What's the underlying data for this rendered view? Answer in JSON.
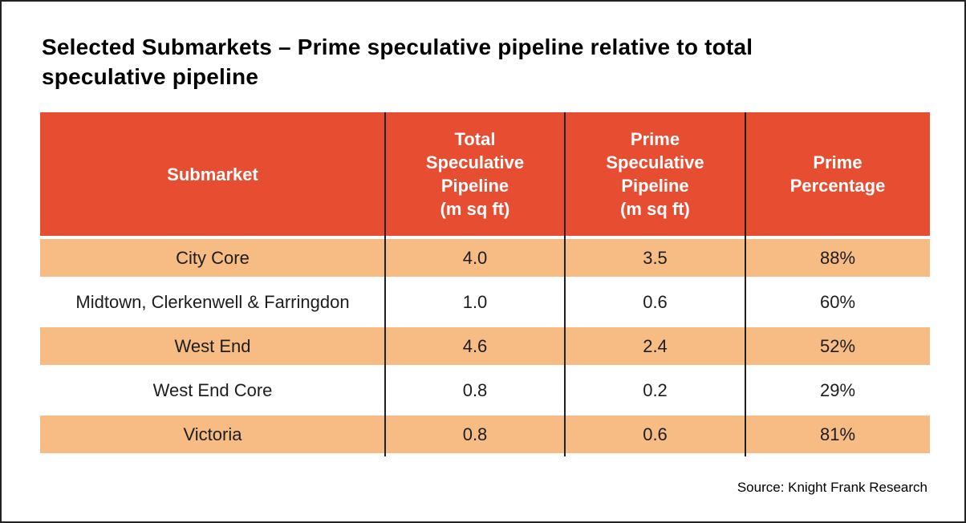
{
  "title_display": "Selected Submarkets – Prime speculative pipeline relative to total\nspeculative pipeline",
  "table_display": {
    "headers": [
      "Submarket",
      "Total\nSpeculative\nPipeline\n(m sq ft)",
      "Prime\nSpeculative\nPipeline\n(m sq ft)",
      "Prime\nPercentage"
    ]
  },
  "chart_data": {
    "type": "table",
    "title": "Selected Submarkets – Prime speculative pipeline relative to total speculative pipeline",
    "columns": [
      "Submarket",
      "Total Speculative Pipeline (m sq ft)",
      "Prime Speculative Pipeline (m sq ft)",
      "Prime Percentage"
    ],
    "rows": [
      [
        "City Core",
        "4.0",
        "3.5",
        "88%"
      ],
      [
        "Midtown, Clerkenwell & Farringdon",
        "1.0",
        "0.6",
        "60%"
      ],
      [
        "West End",
        "4.6",
        "2.4",
        "52%"
      ],
      [
        "West End Core",
        "0.8",
        "0.2",
        "29%"
      ],
      [
        "Victoria",
        "0.8",
        "0.6",
        "81%"
      ]
    ],
    "source": "Source: Knight Frank Research"
  },
  "colors": {
    "header_bg": "#E74E31",
    "row_alt_bg": "#F6BC83",
    "grid_line": "#1F1F1F"
  }
}
